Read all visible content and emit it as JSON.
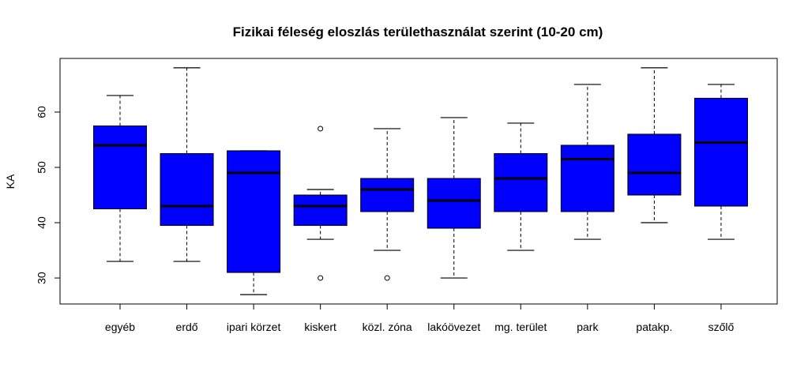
{
  "chart_data": {
    "type": "boxplot",
    "title": "Fizikai féleség eloszlás területhasználat szerint (10-20 cm)",
    "xlabel": "",
    "ylabel": "KA",
    "ylim": [
      25.3,
      69.7
    ],
    "yticks": [
      30,
      40,
      50,
      60
    ],
    "box_color": "#0000ff",
    "categories": [
      "egyéb",
      "erdő",
      "ipari körzet",
      "kiskert",
      "közl. zóna",
      "lakóövezet",
      "mg. terület",
      "park",
      "patakp.",
      "szőlő"
    ],
    "boxes": [
      {
        "category": "egyéb",
        "min": 33,
        "q1": 42.5,
        "median": 54,
        "q3": 57.5,
        "max": 63,
        "outliers": []
      },
      {
        "category": "erdő",
        "min": 33,
        "q1": 39.5,
        "median": 43,
        "q3": 52.5,
        "max": 68,
        "outliers": []
      },
      {
        "category": "ipari körzet",
        "min": 27,
        "q1": 31,
        "median": 49,
        "q3": 53,
        "max": 53,
        "outliers": []
      },
      {
        "category": "kiskert",
        "min": 37,
        "q1": 39.5,
        "median": 43,
        "q3": 45,
        "max": 46,
        "outliers": [
          57,
          30
        ]
      },
      {
        "category": "közl. zóna",
        "min": 35,
        "q1": 42,
        "median": 46,
        "q3": 48,
        "max": 57,
        "outliers": [
          30
        ]
      },
      {
        "category": "lakóövezet",
        "min": 30,
        "q1": 39,
        "median": 44,
        "q3": 48,
        "max": 59,
        "outliers": []
      },
      {
        "category": "mg. terület",
        "min": 35,
        "q1": 42,
        "median": 48,
        "q3": 52.5,
        "max": 58,
        "outliers": []
      },
      {
        "category": "park",
        "min": 37,
        "q1": 42,
        "median": 51.5,
        "q3": 54,
        "max": 65,
        "outliers": []
      },
      {
        "category": "patakp.",
        "min": 40,
        "q1": 45,
        "median": 49,
        "q3": 56,
        "max": 68,
        "outliers": []
      },
      {
        "category": "szőlő",
        "min": 37,
        "q1": 43,
        "median": 54.5,
        "q3": 62.5,
        "max": 65,
        "outliers": []
      }
    ]
  }
}
